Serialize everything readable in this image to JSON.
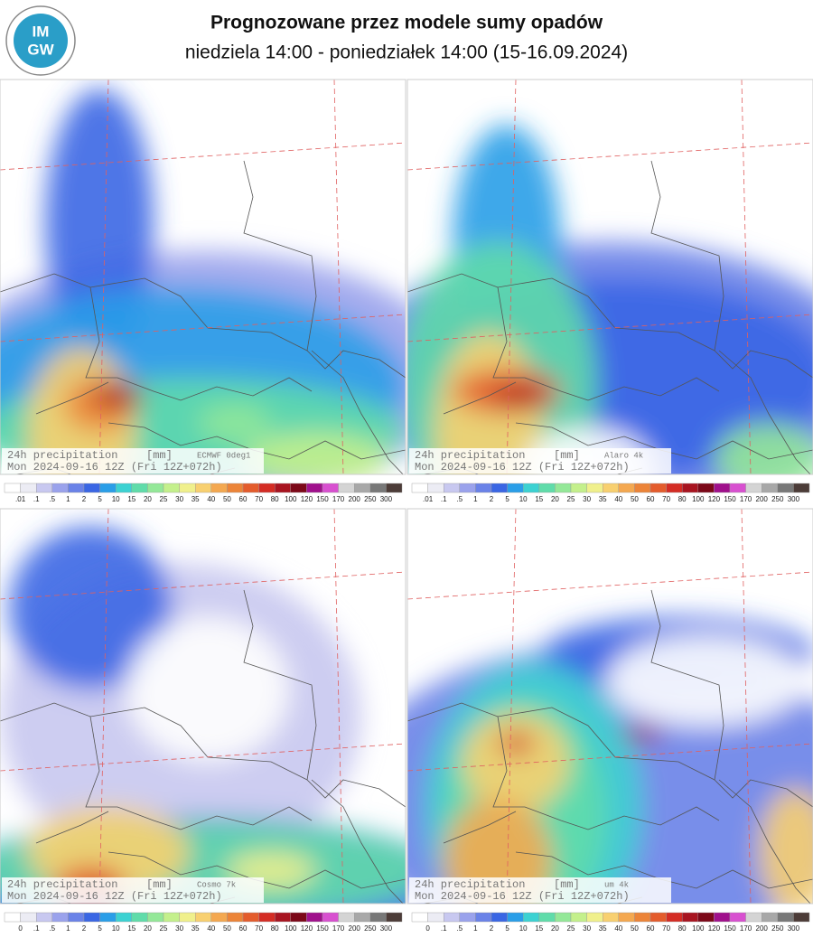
{
  "header": {
    "title": "Prognozowane przez modele sumy opadów",
    "subtitle": "niedziela 14:00 - poniedziałek 14:00 (15-16.09.2024)",
    "logo_top": "IM",
    "logo_bottom": "GW"
  },
  "colorbar_colors": [
    "#ffffff",
    "#ececf4",
    "#c8c8f0",
    "#9aa2ec",
    "#6a82e8",
    "#3a66e4",
    "#2a9ee8",
    "#3cd2d2",
    "#60dcaa",
    "#94e898",
    "#c4f08c",
    "#f0f08c",
    "#f8d070",
    "#f4a850",
    "#ec8438",
    "#e45c2c",
    "#d42c24",
    "#a81420",
    "#7c0818",
    "#a0108c",
    "#d850d0",
    "#d4d4d4",
    "#a8a8a8",
    "#787878",
    "#4c3c38"
  ],
  "panels": [
    {
      "variable": "24h precipitation",
      "unit": "[mm]",
      "model": "ECMWF 0deg1",
      "valid": "Mon 2024-09-16 12Z (Fri 12Z+072h)",
      "legend_labels": [
        ".01",
        ".1",
        ".5",
        "1",
        "2",
        "5",
        "10",
        "15",
        "20",
        "25",
        "30",
        "35",
        "40",
        "50",
        "60",
        "70",
        "80",
        "100",
        "120",
        "150",
        "170",
        "200",
        "250",
        "300"
      ]
    },
    {
      "variable": "24h precipitation",
      "unit": "[mm]",
      "model": "Alaro 4k",
      "valid": "Mon 2024-09-16 12Z (Fri 12Z+072h)",
      "legend_labels": [
        ".01",
        ".1",
        ".5",
        "1",
        "2",
        "5",
        "10",
        "15",
        "20",
        "25",
        "30",
        "35",
        "40",
        "50",
        "60",
        "70",
        "80",
        "100",
        "120",
        "150",
        "170",
        "200",
        "250",
        "300"
      ]
    },
    {
      "variable": "24h precipitation",
      "unit": "[mm]",
      "model": "Cosmo 7k",
      "valid": "Mon 2024-09-16 12Z (Fri 12Z+072h)",
      "legend_labels": [
        "0",
        ".1",
        ".5",
        "1",
        "2",
        "5",
        "10",
        "15",
        "20",
        "25",
        "30",
        "35",
        "40",
        "50",
        "60",
        "70",
        "80",
        "100",
        "120",
        "150",
        "170",
        "200",
        "250",
        "300"
      ]
    },
    {
      "variable": "24h precipitation",
      "unit": "[mm]",
      "model": "um 4k",
      "valid": "Mon 2024-09-16 12Z (Fri 12Z+072h)",
      "legend_labels": [
        "0",
        ".1",
        ".5",
        "1",
        "2",
        "5",
        "10",
        "15",
        "20",
        "25",
        "30",
        "35",
        "40",
        "50",
        "60",
        "70",
        "80",
        "100",
        "120",
        "150",
        "170",
        "200",
        "250",
        "300"
      ]
    }
  ]
}
